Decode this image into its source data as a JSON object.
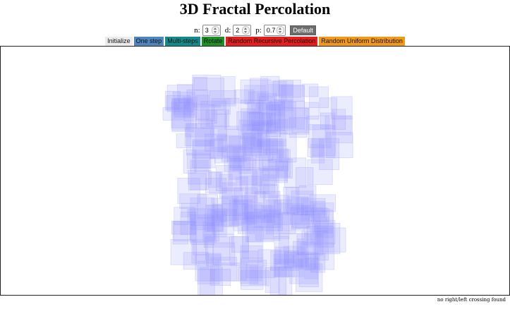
{
  "page": {
    "title": "3D Fractal Percolation"
  },
  "controls": {
    "n_label": "n:",
    "n_value": "3",
    "d_label": "d:",
    "d_value": "2",
    "p_label": "p:",
    "p_value": "0.7",
    "default_label": "Default"
  },
  "buttons": {
    "initialize": "Initialize",
    "one_step": "One step",
    "multi_steps": "Multi-steps",
    "rotate": "Rotate",
    "random_recursive": "Random Recursive Percolation",
    "random_uniform": "Random Uniform Distribution"
  },
  "colors": {
    "cube_fill": "#8b8bff",
    "cube_stroke": "#b8b8ff"
  },
  "status": {
    "message": "no right/left crossing found"
  }
}
